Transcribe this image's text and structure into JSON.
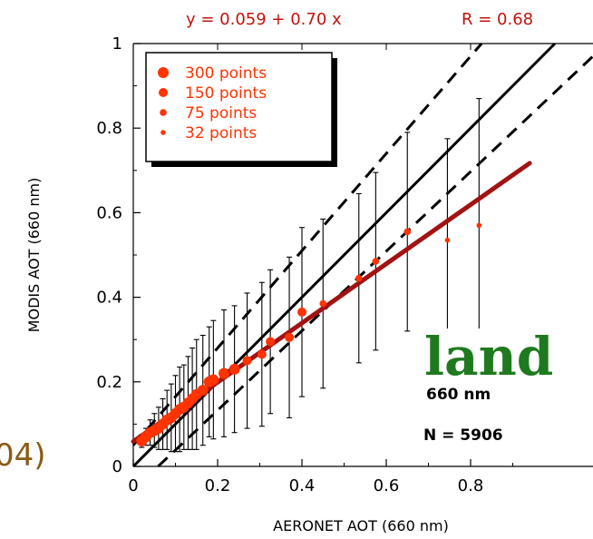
{
  "chart_data": {
    "type": "scatter",
    "title": "",
    "equation_text": "y = 0.059 + 0.70 x",
    "r_text": "R = 0.68",
    "xlabel": "AERONET AOT (660 nm)",
    "ylabel": "MODIS AOT (660 nm)",
    "xlim": [
      0,
      1
    ],
    "ylim": [
      0,
      1
    ],
    "x_ticks": [
      "0",
      "0.2",
      "0.4",
      "0.6",
      "0.8"
    ],
    "y_ticks": [
      "0",
      "0.2",
      "0.4",
      "0.6",
      "0.8",
      "1"
    ],
    "grid": false,
    "legend_position": "top-left",
    "legend": [
      {
        "label": "300 points",
        "size": 300
      },
      {
        "label": "150 points",
        "size": 150
      },
      {
        "label": "75 points",
        "size": 75
      },
      {
        "label": "32 points",
        "size": 32
      }
    ],
    "points": [
      {
        "x": 0.02,
        "y": 0.06,
        "err": 0.015,
        "size": 300
      },
      {
        "x": 0.03,
        "y": 0.07,
        "err": 0.02,
        "size": 300
      },
      {
        "x": 0.04,
        "y": 0.08,
        "err": 0.03,
        "size": 300
      },
      {
        "x": 0.05,
        "y": 0.085,
        "err": 0.04,
        "size": 300
      },
      {
        "x": 0.06,
        "y": 0.09,
        "err": 0.05,
        "size": 300
      },
      {
        "x": 0.07,
        "y": 0.1,
        "err": 0.06,
        "size": 300
      },
      {
        "x": 0.08,
        "y": 0.11,
        "err": 0.07,
        "size": 300
      },
      {
        "x": 0.09,
        "y": 0.115,
        "err": 0.08,
        "size": 300
      },
      {
        "x": 0.1,
        "y": 0.125,
        "err": 0.09,
        "size": 300
      },
      {
        "x": 0.11,
        "y": 0.135,
        "err": 0.1,
        "size": 300
      },
      {
        "x": 0.12,
        "y": 0.14,
        "err": 0.1,
        "size": 300
      },
      {
        "x": 0.13,
        "y": 0.15,
        "err": 0.11,
        "size": 300
      },
      {
        "x": 0.14,
        "y": 0.16,
        "err": 0.12,
        "size": 300
      },
      {
        "x": 0.15,
        "y": 0.17,
        "err": 0.13,
        "size": 300
      },
      {
        "x": 0.165,
        "y": 0.18,
        "err": 0.13,
        "size": 300
      },
      {
        "x": 0.18,
        "y": 0.2,
        "err": 0.13,
        "size": 300
      },
      {
        "x": 0.19,
        "y": 0.205,
        "err": 0.14,
        "size": 300
      },
      {
        "x": 0.215,
        "y": 0.22,
        "err": 0.15,
        "size": 300
      },
      {
        "x": 0.24,
        "y": 0.23,
        "err": 0.15,
        "size": 300
      },
      {
        "x": 0.27,
        "y": 0.25,
        "err": 0.16,
        "size": 150
      },
      {
        "x": 0.305,
        "y": 0.265,
        "err": 0.17,
        "size": 150
      },
      {
        "x": 0.325,
        "y": 0.295,
        "err": 0.17,
        "size": 150
      },
      {
        "x": 0.37,
        "y": 0.305,
        "err": 0.19,
        "size": 150
      },
      {
        "x": 0.4,
        "y": 0.365,
        "err": 0.2,
        "size": 150
      },
      {
        "x": 0.45,
        "y": 0.385,
        "err": 0.2,
        "size": 75
      },
      {
        "x": 0.535,
        "y": 0.445,
        "err": 0.2,
        "size": 75
      },
      {
        "x": 0.575,
        "y": 0.485,
        "err": 0.21,
        "size": 75
      },
      {
        "x": 0.65,
        "y": 0.555,
        "err": 0.235,
        "size": 75
      },
      {
        "x": 0.745,
        "y": 0.535,
        "err": 0.24,
        "size": 32
      },
      {
        "x": 0.82,
        "y": 0.57,
        "err": 0.3,
        "size": 32
      }
    ],
    "lines": [
      {
        "kind": "one-to-one",
        "style": "solid"
      },
      {
        "kind": "uncertainty",
        "style": "dashed"
      },
      {
        "kind": "regression",
        "intercept": 0.059,
        "slope": 0.7
      }
    ],
    "annotations": {
      "surface": "land",
      "wavelength": "660 nm",
      "count": "N = 5906",
      "left_edge_fragment": "04)"
    },
    "colors": {
      "points": "#ff3300",
      "regression": "#a31212",
      "equation": "#c0140c",
      "land": "#1f7a1f",
      "fragment": "#8b5a14"
    }
  }
}
